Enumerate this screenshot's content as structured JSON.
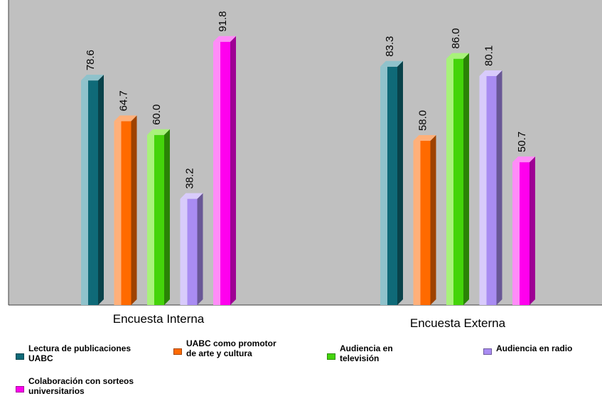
{
  "chart_data": {
    "type": "bar",
    "categories": [
      "Encuesta Interna",
      "Encuesta Externa"
    ],
    "series": [
      {
        "name": "Lectura de publicaciones UABC",
        "values": [
          78.6,
          83.3
        ],
        "labels": [
          "78.6",
          "83.3"
        ],
        "color": "#0f6a78",
        "light": "#8fc2cb"
      },
      {
        "name": "UABC como promotor de arte y cultura",
        "values": [
          64.7,
          58.0
        ],
        "labels": [
          "64.7",
          "58.0"
        ],
        "color": "#ff6a00",
        "light": "#ffb07a"
      },
      {
        "name": "Audiencia en televisión",
        "values": [
          60.0,
          86.0
        ],
        "labels": [
          "60.0",
          "86.0"
        ],
        "color": "#44d40a",
        "light": "#a8f27a"
      },
      {
        "name": "Audiencia en radio",
        "values": [
          38.2,
          80.1
        ],
        "labels": [
          "38.2",
          "80.1"
        ],
        "color": "#a98cf2",
        "light": "#d8cbfb"
      },
      {
        "name": "Colaboración con sorteos universitarios",
        "values": [
          91.8,
          50.7
        ],
        "labels": [
          "91.8",
          "50.7"
        ],
        "color": "#ff00ee",
        "light": "#ff8cf7"
      }
    ],
    "ylim": [
      0,
      100
    ],
    "grid": false,
    "legend_position": "bottom",
    "background": "#c0c0c0",
    "title": "",
    "xlabel": "",
    "ylabel": ""
  }
}
